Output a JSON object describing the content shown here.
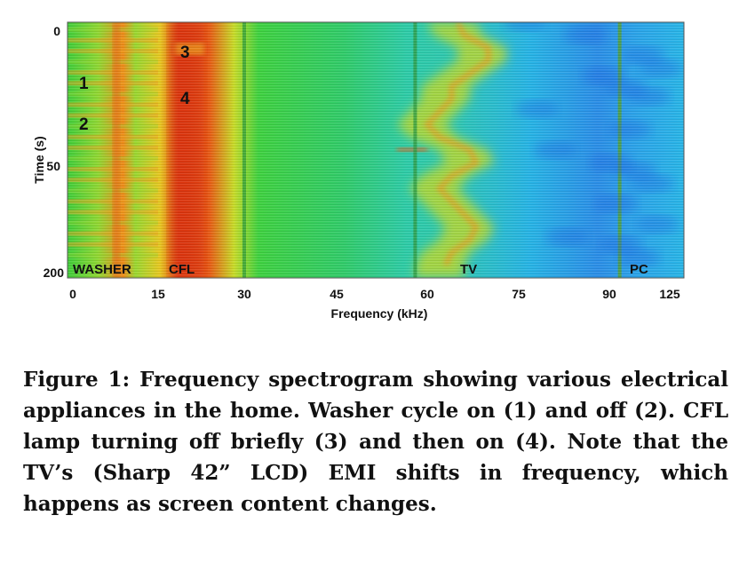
{
  "chart_data": {
    "type": "heatmap",
    "title": "",
    "xlabel": "Frequency (kHz)",
    "ylabel": "Time (s)",
    "x_ticks": [
      "0",
      "15",
      "30",
      "45",
      "60",
      "75",
      "90",
      "125"
    ],
    "y_ticks": [
      "0",
      "50",
      "200"
    ],
    "x_tick_values": [
      0,
      15,
      30,
      45,
      60,
      75,
      90,
      125
    ],
    "y_tick_values": [
      0,
      50,
      200
    ],
    "grid": false,
    "colormap": [
      "#1f4fe0",
      "#1fa8ee",
      "#2ed6a0",
      "#3ecf3e",
      "#a8e02a",
      "#f0d020",
      "#f08a18",
      "#e03a12"
    ],
    "appliance_labels": [
      {
        "text": "WASHER",
        "x": 5
      },
      {
        "text": "CFL",
        "x": 18
      },
      {
        "text": "TV",
        "x": 67
      },
      {
        "text": "PC",
        "x": 96
      }
    ],
    "event_markers": [
      {
        "text": "1",
        "x": 2,
        "y": 25
      },
      {
        "text": "2",
        "x": 2,
        "y": 40
      },
      {
        "text": "3",
        "x": 20,
        "y": 10
      },
      {
        "text": "4",
        "x": 20,
        "y": 28
      }
    ],
    "tv_center_khz": [
      65,
      66,
      70,
      70,
      67,
      64,
      64,
      62,
      60,
      62,
      67,
      68,
      64,
      62,
      64,
      66,
      68,
      67,
      64,
      63
    ],
    "time_samples": [
      0,
      5,
      10,
      15,
      20,
      25,
      30,
      35,
      40,
      45,
      50,
      55,
      60,
      65,
      70,
      75,
      80,
      85,
      90,
      95
    ]
  },
  "caption": "Figure 1: Frequency spectrogram showing various electrical appliances in the home. Washer cycle on (1) and off (2). CFL lamp turning off briefly (3) and then on (4). Note that the TV’s (Sharp 42” LCD) EMI shifts in frequency, which happens as screen content changes."
}
